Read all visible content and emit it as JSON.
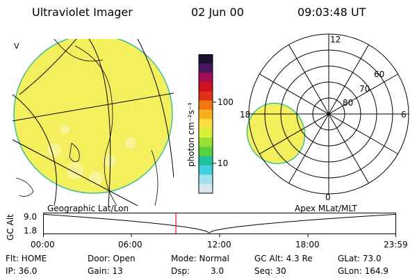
{
  "header": {
    "title": "Ultraviolet Imager",
    "date": "02 Jun 00",
    "time": "09:03:48 UT"
  },
  "colors": {
    "aurora_fill": "#f4ef5c",
    "aurora_edge": "#3fbf9a",
    "marker": "#e01010"
  },
  "colorbar": {
    "label": "photon cm⁻²s⁻¹",
    "ticks": [
      "100",
      "10"
    ],
    "colors": [
      "#1a1030",
      "#4b1660",
      "#a01050",
      "#d01020",
      "#e03018",
      "#f07a10",
      "#f8b020",
      "#f8e040",
      "#d8f038",
      "#98e030",
      "#58d040",
      "#20c0a0",
      "#40d0e0",
      "#a0e0f0",
      "#d8e8f0"
    ]
  },
  "left_map": {
    "label": "Geographic Lat/Lon",
    "edge_mark": "V"
  },
  "polar_plot": {
    "label": "Apex MLat/MLT",
    "hour_labels": {
      "top": "12",
      "left": "18",
      "right": "6",
      "bottom": "0"
    },
    "lat_labels": [
      "60",
      "70",
      "80"
    ]
  },
  "alt_plot": {
    "axis_label": "GC Alt",
    "ymax": "9.0",
    "ymin": "1.8",
    "x_ticks": [
      "00:00",
      "06:00",
      "12:00",
      "18:00",
      "23:59"
    ],
    "current_time_fraction": 0.376,
    "min_alt_fraction": 0.47
  },
  "info": {
    "flt": "Flt: HOME",
    "ip": "IP: 36.0",
    "door": "Door: Open",
    "gain": "Gain: 13",
    "mode": "Mode: Normal",
    "dsp_label": "Dsp:",
    "dsp_value": "3.0",
    "gc_alt": "GC Alt: 4.3 Re",
    "seq": "Seq: 30",
    "glat": "GLat: 73.0",
    "glon": "GLon: 164.9"
  }
}
